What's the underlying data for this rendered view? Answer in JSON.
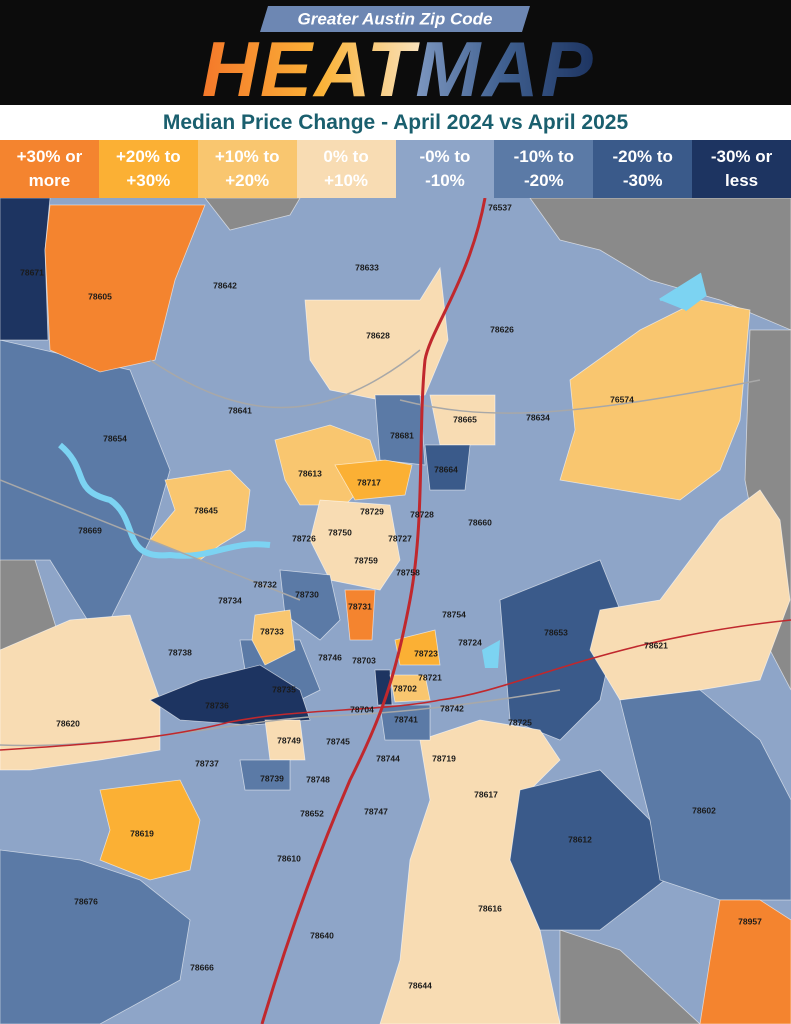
{
  "header": {
    "kicker": "Greater Austin Zip Code",
    "title_1": "HEAT",
    "title_2": "MAP"
  },
  "subtitle": "Median Price Change - April 2024 vs April 2025",
  "legend": [
    {
      "lines": [
        "+30% or",
        "more"
      ],
      "color": "#f4842f"
    },
    {
      "lines": [
        "+20% to",
        "+30%"
      ],
      "color": "#fbb034"
    },
    {
      "lines": [
        "+10% to",
        "+20%"
      ],
      "color": "#f9c66f"
    },
    {
      "lines": [
        "0% to",
        "+10%"
      ],
      "color": "#f8dcb3"
    },
    {
      "lines": [
        "-0% to",
        "-10%"
      ],
      "color": "#8ea5c8"
    },
    {
      "lines": [
        "-10% to",
        "-20%"
      ],
      "color": "#5b7aa6"
    },
    {
      "lines": [
        "-20% to",
        "-30%"
      ],
      "color": "#3a5a8a"
    },
    {
      "lines": [
        "-30% or",
        "less"
      ],
      "color": "#1d3461"
    }
  ],
  "map": {
    "zips": [
      "76537",
      "78671",
      "78605",
      "78642",
      "78633",
      "78628",
      "78626",
      "76574",
      "78641",
      "78654",
      "78665",
      "78634",
      "78681",
      "78664",
      "78613",
      "78717",
      "78645",
      "78729",
      "78728",
      "78660",
      "78669",
      "78726",
      "78750",
      "78727",
      "78759",
      "78758",
      "78732",
      "78730",
      "78734",
      "78731",
      "78754",
      "78653",
      "78733",
      "78738",
      "78724",
      "78723",
      "78621",
      "78746",
      "78703",
      "78721",
      "78735",
      "78702",
      "78736",
      "78704",
      "78742",
      "78620",
      "78741",
      "78725",
      "78749",
      "78745",
      "78744",
      "78719",
      "78737",
      "78739",
      "78748",
      "78617",
      "78602",
      "78652",
      "78747",
      "78619",
      "78612",
      "78610",
      "78676",
      "78616",
      "78640",
      "78957",
      "78666",
      "78644"
    ]
  }
}
